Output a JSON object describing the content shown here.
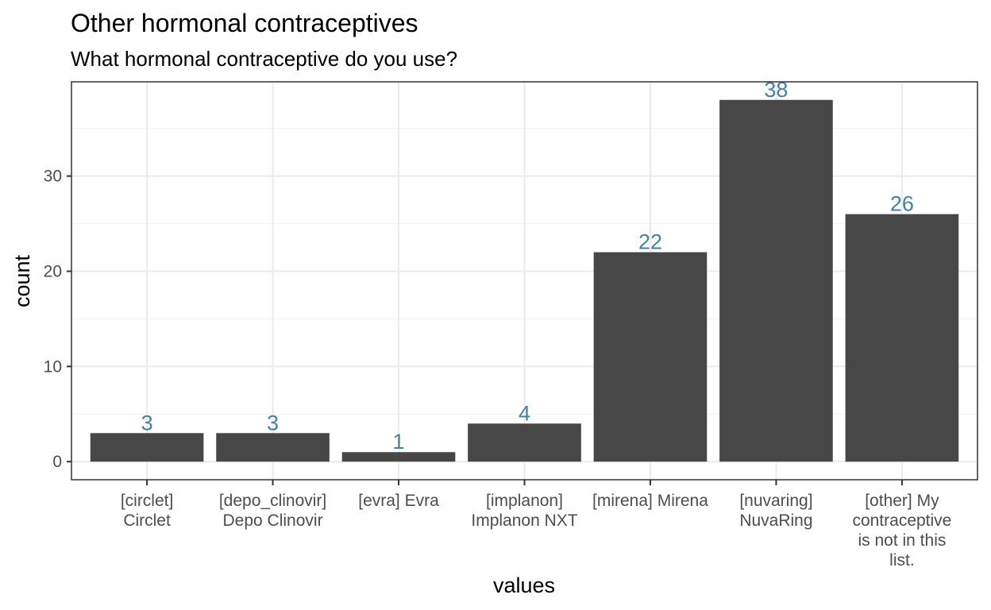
{
  "chart_data": {
    "type": "bar",
    "title": "Other hormonal contraceptives",
    "subtitle": "What hormonal contraceptive do you use?",
    "xlabel": "values",
    "ylabel": "count",
    "categories": [
      [
        "[circlet]",
        "Circlet"
      ],
      [
        "[depo_clinovir]",
        "Depo Clinovir"
      ],
      [
        "[evra] Evra"
      ],
      [
        "[implanon]",
        "Implanon NXT"
      ],
      [
        "[mirena] Mirena"
      ],
      [
        "[nuvaring]",
        "NuvaRing"
      ],
      [
        "[other] My",
        "contraceptive",
        "is not in this",
        "list."
      ]
    ],
    "values": [
      3,
      3,
      1,
      4,
      22,
      38,
      26
    ],
    "data_labels": [
      "3",
      "3",
      "1",
      "4",
      "22",
      "38",
      "26"
    ],
    "ylim": [
      -1.9,
      39.9
    ],
    "y_ticks": [
      0,
      10,
      20,
      30
    ],
    "y_tick_labels": [
      "0",
      "10",
      "20",
      "30"
    ],
    "grid": true,
    "bar_color": "#474747",
    "label_color": "#4682a0"
  }
}
